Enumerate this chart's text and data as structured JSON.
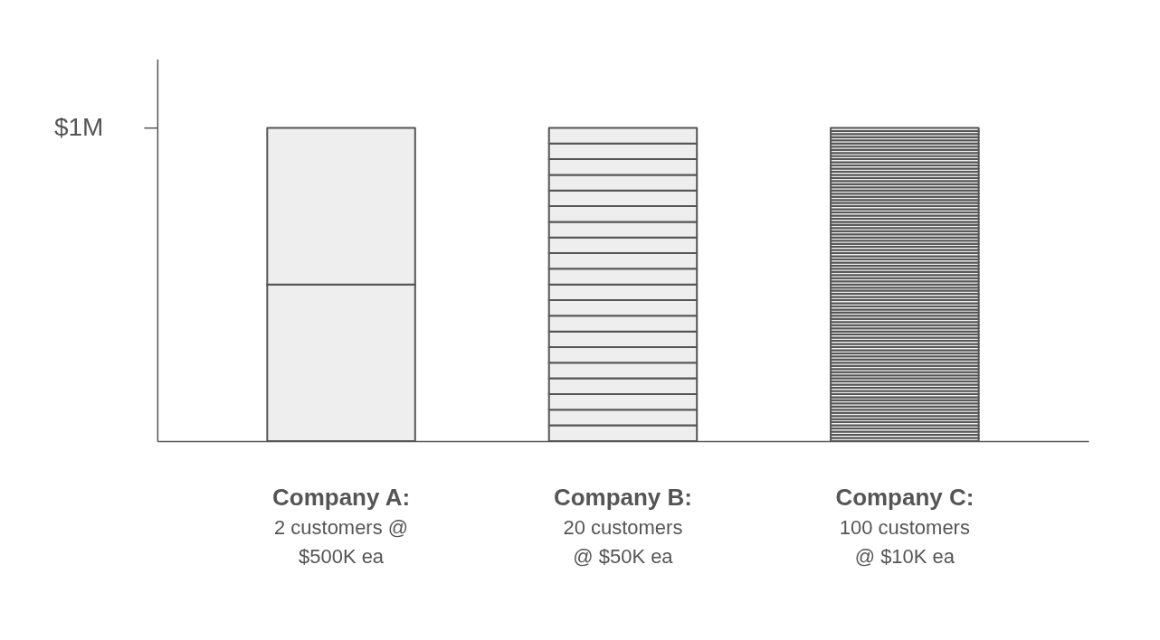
{
  "chart_data": {
    "type": "bar",
    "stacked": true,
    "categories": [
      "Company A:\n2 customers @\n$500K ea",
      "Company B:\n20 customers\n@ $50K ea",
      "Company C:\n100 customers\n@ $10K ea"
    ],
    "ylim": [
      0,
      1220000
    ],
    "yticks": [
      {
        "value": 1000000,
        "label": "$1M"
      }
    ],
    "grid": false,
    "legend": false,
    "series": [
      {
        "color": "#eeeeee",
        "values": [
          500000,
          50000,
          10000
        ]
      },
      {
        "color": "#eeeeee",
        "values": [
          500000,
          50000,
          10000
        ]
      },
      {
        "color": "#eeeeee",
        "values": [
          null,
          50000,
          10000
        ]
      },
      {
        "color": "#eeeeee",
        "values": [
          null,
          50000,
          10000
        ]
      },
      {
        "color": "#eeeeee",
        "values": [
          null,
          50000,
          10000
        ]
      },
      {
        "color": "#eeeeee",
        "values": [
          null,
          50000,
          10000
        ]
      },
      {
        "color": "#eeeeee",
        "values": [
          null,
          50000,
          10000
        ]
      },
      {
        "color": "#eeeeee",
        "values": [
          null,
          50000,
          10000
        ]
      },
      {
        "color": "#eeeeee",
        "values": [
          null,
          50000,
          10000
        ]
      },
      {
        "color": "#eeeeee",
        "values": [
          null,
          50000,
          10000
        ]
      },
      {
        "color": "#eeeeee",
        "values": [
          null,
          50000,
          10000
        ]
      },
      {
        "color": "#eeeeee",
        "values": [
          null,
          50000,
          10000
        ]
      },
      {
        "color": "#eeeeee",
        "values": [
          null,
          50000,
          10000
        ]
      },
      {
        "color": "#eeeeee",
        "values": [
          null,
          50000,
          10000
        ]
      },
      {
        "color": "#eeeeee",
        "values": [
          null,
          50000,
          10000
        ]
      },
      {
        "color": "#eeeeee",
        "values": [
          null,
          50000,
          10000
        ]
      },
      {
        "color": "#eeeeee",
        "values": [
          null,
          50000,
          10000
        ]
      },
      {
        "color": "#eeeeee",
        "values": [
          null,
          50000,
          10000
        ]
      },
      {
        "color": "#eeeeee",
        "values": [
          null,
          50000,
          10000
        ]
      },
      {
        "color": "#eeeeee",
        "values": [
          null,
          50000,
          10000
        ]
      },
      {
        "color": "#eeeeee",
        "values": [
          null,
          null,
          10000
        ]
      },
      {
        "color": "#eeeeee",
        "values": [
          null,
          null,
          10000
        ]
      },
      {
        "color": "#eeeeee",
        "values": [
          null,
          null,
          10000
        ]
      },
      {
        "color": "#eeeeee",
        "values": [
          null,
          null,
          10000
        ]
      },
      {
        "color": "#eeeeee",
        "values": [
          null,
          null,
          10000
        ]
      },
      {
        "color": "#eeeeee",
        "values": [
          null,
          null,
          10000
        ]
      },
      {
        "color": "#eeeeee",
        "values": [
          null,
          null,
          10000
        ]
      },
      {
        "color": "#eeeeee",
        "values": [
          null,
          null,
          10000
        ]
      },
      {
        "color": "#eeeeee",
        "values": [
          null,
          null,
          10000
        ]
      },
      {
        "color": "#eeeeee",
        "values": [
          null,
          null,
          10000
        ]
      },
      {
        "color": "#eeeeee",
        "values": [
          null,
          null,
          10000
        ]
      },
      {
        "color": "#eeeeee",
        "values": [
          null,
          null,
          10000
        ]
      },
      {
        "color": "#eeeeee",
        "values": [
          null,
          null,
          10000
        ]
      },
      {
        "color": "#eeeeee",
        "values": [
          null,
          null,
          10000
        ]
      },
      {
        "color": "#eeeeee",
        "values": [
          null,
          null,
          10000
        ]
      },
      {
        "color": "#eeeeee",
        "values": [
          null,
          null,
          10000
        ]
      },
      {
        "color": "#eeeeee",
        "values": [
          null,
          null,
          10000
        ]
      },
      {
        "color": "#eeeeee",
        "values": [
          null,
          null,
          10000
        ]
      },
      {
        "color": "#eeeeee",
        "values": [
          null,
          null,
          10000
        ]
      },
      {
        "color": "#eeeeee",
        "values": [
          null,
          null,
          10000
        ]
      },
      {
        "color": "#eeeeee",
        "values": [
          null,
          null,
          10000
        ]
      },
      {
        "color": "#eeeeee",
        "values": [
          null,
          null,
          10000
        ]
      },
      {
        "color": "#eeeeee",
        "values": [
          null,
          null,
          10000
        ]
      },
      {
        "color": "#eeeeee",
        "values": [
          null,
          null,
          10000
        ]
      },
      {
        "color": "#eeeeee",
        "values": [
          null,
          null,
          10000
        ]
      },
      {
        "color": "#eeeeee",
        "values": [
          null,
          null,
          10000
        ]
      },
      {
        "color": "#eeeeee",
        "values": [
          null,
          null,
          10000
        ]
      },
      {
        "color": "#eeeeee",
        "values": [
          null,
          null,
          10000
        ]
      },
      {
        "color": "#eeeeee",
        "values": [
          null,
          null,
          10000
        ]
      },
      {
        "color": "#eeeeee",
        "values": [
          null,
          null,
          10000
        ]
      },
      {
        "color": "#eeeeee",
        "values": [
          null,
          null,
          10000
        ]
      },
      {
        "color": "#eeeeee",
        "values": [
          null,
          null,
          10000
        ]
      },
      {
        "color": "#eeeeee",
        "values": [
          null,
          null,
          10000
        ]
      },
      {
        "color": "#eeeeee",
        "values": [
          null,
          null,
          10000
        ]
      },
      {
        "color": "#eeeeee",
        "values": [
          null,
          null,
          10000
        ]
      },
      {
        "color": "#eeeeee",
        "values": [
          null,
          null,
          10000
        ]
      },
      {
        "color": "#eeeeee",
        "values": [
          null,
          null,
          10000
        ]
      },
      {
        "color": "#eeeeee",
        "values": [
          null,
          null,
          10000
        ]
      },
      {
        "color": "#eeeeee",
        "values": [
          null,
          null,
          10000
        ]
      },
      {
        "color": "#eeeeee",
        "values": [
          null,
          null,
          10000
        ]
      },
      {
        "color": "#eeeeee",
        "values": [
          null,
          null,
          10000
        ]
      },
      {
        "color": "#eeeeee",
        "values": [
          null,
          null,
          10000
        ]
      },
      {
        "color": "#eeeeee",
        "values": [
          null,
          null,
          10000
        ]
      },
      {
        "color": "#eeeeee",
        "values": [
          null,
          null,
          10000
        ]
      },
      {
        "color": "#eeeeee",
        "values": [
          null,
          null,
          10000
        ]
      },
      {
        "color": "#eeeeee",
        "values": [
          null,
          null,
          10000
        ]
      },
      {
        "color": "#eeeeee",
        "values": [
          null,
          null,
          10000
        ]
      },
      {
        "color": "#eeeeee",
        "values": [
          null,
          null,
          10000
        ]
      },
      {
        "color": "#eeeeee",
        "values": [
          null,
          null,
          10000
        ]
      },
      {
        "color": "#eeeeee",
        "values": [
          null,
          null,
          10000
        ]
      },
      {
        "color": "#eeeeee",
        "values": [
          null,
          null,
          10000
        ]
      },
      {
        "color": "#eeeeee",
        "values": [
          null,
          null,
          10000
        ]
      },
      {
        "color": "#eeeeee",
        "values": [
          null,
          null,
          10000
        ]
      },
      {
        "color": "#eeeeee",
        "values": [
          null,
          null,
          10000
        ]
      },
      {
        "color": "#eeeeee",
        "values": [
          null,
          null,
          10000
        ]
      },
      {
        "color": "#eeeeee",
        "values": [
          null,
          null,
          10000
        ]
      },
      {
        "color": "#eeeeee",
        "values": [
          null,
          null,
          10000
        ]
      },
      {
        "color": "#eeeeee",
        "values": [
          null,
          null,
          10000
        ]
      },
      {
        "color": "#eeeeee",
        "values": [
          null,
          null,
          10000
        ]
      },
      {
        "color": "#eeeeee",
        "values": [
          null,
          null,
          10000
        ]
      },
      {
        "color": "#eeeeee",
        "values": [
          null,
          null,
          10000
        ]
      },
      {
        "color": "#eeeeee",
        "values": [
          null,
          null,
          10000
        ]
      },
      {
        "color": "#eeeeee",
        "values": [
          null,
          null,
          10000
        ]
      },
      {
        "color": "#eeeeee",
        "values": [
          null,
          null,
          10000
        ]
      },
      {
        "color": "#eeeeee",
        "values": [
          null,
          null,
          10000
        ]
      },
      {
        "color": "#eeeeee",
        "values": [
          null,
          null,
          10000
        ]
      },
      {
        "color": "#eeeeee",
        "values": [
          null,
          null,
          10000
        ]
      },
      {
        "color": "#eeeeee",
        "values": [
          null,
          null,
          10000
        ]
      },
      {
        "color": "#eeeeee",
        "values": [
          null,
          null,
          10000
        ]
      },
      {
        "color": "#eeeeee",
        "values": [
          null,
          null,
          10000
        ]
      },
      {
        "color": "#eeeeee",
        "values": [
          null,
          null,
          10000
        ]
      },
      {
        "color": "#eeeeee",
        "values": [
          null,
          null,
          10000
        ]
      },
      {
        "color": "#eeeeee",
        "values": [
          null,
          null,
          10000
        ]
      },
      {
        "color": "#eeeeee",
        "values": [
          null,
          null,
          10000
        ]
      },
      {
        "color": "#eeeeee",
        "values": [
          null,
          null,
          10000
        ]
      },
      {
        "color": "#eeeeee",
        "values": [
          null,
          null,
          10000
        ]
      },
      {
        "color": "#eeeeee",
        "values": [
          null,
          null,
          10000
        ]
      },
      {
        "color": "#eeeeee",
        "values": [
          null,
          null,
          10000
        ]
      },
      {
        "color": "#eeeeee",
        "values": [
          null,
          null,
          10000
        ]
      },
      {
        "color": "#eeeeee",
        "values": [
          null,
          null,
          10000
        ]
      }
    ]
  }
}
